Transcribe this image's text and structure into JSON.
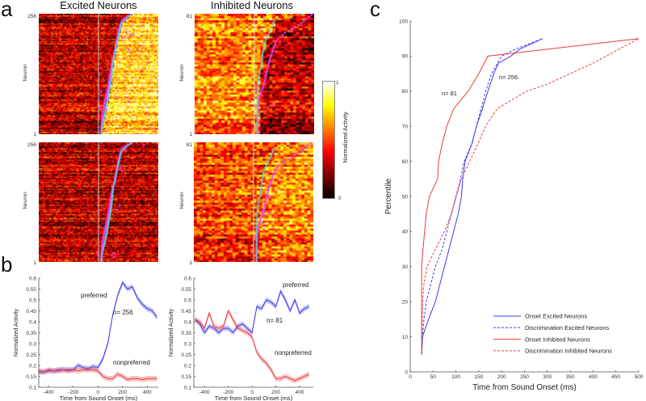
{
  "panel_labels": {
    "a": "a",
    "b": "b",
    "c": "c"
  },
  "heatmaps": {
    "titles": {
      "excited": "Excited Neurons",
      "inhibited": "Inhibited Neurons"
    },
    "ylabel": "Neuron",
    "excited_n": {
      "top": "256",
      "bottom": "1"
    },
    "inhibited_n": {
      "top": "81",
      "bottom": "1"
    },
    "colorbar": {
      "label": "Normalized Activity",
      "max": "1",
      "min": "0"
    },
    "colors": {
      "onset_marker": "#4fe3e3",
      "discrimination_marker": "#f03cf0",
      "onset_line": "#e8e8e8"
    }
  },
  "chart_data": [
    {
      "type": "line",
      "id": "b-excited",
      "xlabel": "Time from Sound Onset (ms)",
      "ylabel": "Normalized Activity",
      "xlim": [
        -480,
        490
      ],
      "ylim": [
        0.1,
        0.6
      ],
      "xticks": [
        -400,
        -200,
        0,
        200,
        400
      ],
      "yticks": [
        0.1,
        0.15,
        0.2,
        0.25,
        0.3,
        0.35,
        0.4,
        0.45,
        0.5,
        0.55,
        0.6
      ],
      "annotations": {
        "preferred": "preferred",
        "nonpreferred": "nonpreferred",
        "n": "n= 256"
      },
      "x": [
        -480,
        -440,
        -400,
        -360,
        -320,
        -280,
        -240,
        -200,
        -160,
        -120,
        -80,
        -40,
        0,
        40,
        80,
        120,
        160,
        200,
        240,
        280,
        320,
        360,
        400,
        440,
        480
      ],
      "series": [
        {
          "name": "preferred",
          "color": "#3b3bf0",
          "values": [
            0.17,
            0.17,
            0.175,
            0.175,
            0.18,
            0.18,
            0.18,
            0.18,
            0.2,
            0.19,
            0.185,
            0.195,
            0.19,
            0.23,
            0.3,
            0.43,
            0.52,
            0.58,
            0.55,
            0.56,
            0.51,
            0.48,
            0.46,
            0.45,
            0.42
          ]
        },
        {
          "name": "nonpreferred",
          "color": "#ee3a3a",
          "values": [
            0.175,
            0.17,
            0.18,
            0.175,
            0.175,
            0.18,
            0.175,
            0.18,
            0.175,
            0.18,
            0.18,
            0.18,
            0.175,
            0.15,
            0.14,
            0.14,
            0.16,
            0.15,
            0.135,
            0.14,
            0.14,
            0.135,
            0.14,
            0.14,
            0.14
          ]
        }
      ]
    },
    {
      "type": "line",
      "id": "b-inhibited",
      "xlabel": "Time from Sound Onset (ms)",
      "ylabel": "Normalized Activity",
      "xlim": [
        -490,
        515
      ],
      "ylim": [
        0.1,
        0.6
      ],
      "xticks": [
        -400,
        -200,
        0,
        200,
        400
      ],
      "yticks": [
        0.1,
        0.15,
        0.2,
        0.25,
        0.3,
        0.35,
        0.4,
        0.45,
        0.5,
        0.55,
        0.6
      ],
      "annotations": {
        "preferred": "preferred",
        "nonpreferred": "nonpreferred",
        "n": "n= 81"
      },
      "x": [
        -480,
        -440,
        -400,
        -360,
        -320,
        -280,
        -240,
        -200,
        -160,
        -120,
        -80,
        -40,
        0,
        40,
        80,
        120,
        160,
        200,
        240,
        280,
        320,
        360,
        400,
        440,
        480
      ],
      "series": [
        {
          "name": "preferred",
          "color": "#3b3bf0",
          "values": [
            0.41,
            0.39,
            0.35,
            0.38,
            0.37,
            0.35,
            0.37,
            0.37,
            0.35,
            0.38,
            0.39,
            0.37,
            0.35,
            0.47,
            0.46,
            0.5,
            0.49,
            0.47,
            0.54,
            0.5,
            0.45,
            0.5,
            0.44,
            0.46,
            0.47
          ]
        },
        {
          "name": "nonpreferred",
          "color": "#ee3a3a",
          "values": [
            0.41,
            0.4,
            0.37,
            0.44,
            0.38,
            0.37,
            0.38,
            0.45,
            0.41,
            0.37,
            0.36,
            0.35,
            0.33,
            0.26,
            0.23,
            0.21,
            0.18,
            0.14,
            0.14,
            0.15,
            0.14,
            0.13,
            0.14,
            0.15,
            0.16
          ]
        }
      ]
    },
    {
      "type": "line",
      "id": "c-cumulative",
      "xlabel": "Time from Sound Onset (ms)",
      "ylabel": "Percentile",
      "xlim": [
        0,
        500
      ],
      "ylim": [
        0,
        100
      ],
      "xticks": [
        0,
        50,
        100,
        150,
        200,
        250,
        300,
        350,
        400,
        450,
        500
      ],
      "yticks": [
        0,
        10,
        20,
        30,
        40,
        50,
        60,
        70,
        80,
        90,
        100
      ],
      "annotations": {
        "n_inhibited": "n= 81",
        "n_excited": "n= 256"
      },
      "legend_position": "bottom-right",
      "series": [
        {
          "name": "Onset Excited Neurons",
          "color": "#3b3bf0",
          "dashed": false,
          "points": [
            [
              25,
              5
            ],
            [
              27,
              10
            ],
            [
              40,
              15
            ],
            [
              55,
              20
            ],
            [
              65,
              25
            ],
            [
              75,
              30
            ],
            [
              85,
              35
            ],
            [
              95,
              40
            ],
            [
              105,
              45
            ],
            [
              112,
              50
            ],
            [
              115,
              55
            ],
            [
              120,
              60
            ],
            [
              135,
              65
            ],
            [
              145,
              70
            ],
            [
              158,
              75
            ],
            [
              170,
              80
            ],
            [
              183,
              85
            ],
            [
              193,
              88
            ],
            [
              220,
              90
            ],
            [
              240,
              92
            ],
            [
              290,
              95
            ]
          ]
        },
        {
          "name": "Discrimination Excited Neurons",
          "color": "#3b3bf0",
          "dashed": true,
          "points": [
            [
              25,
              5
            ],
            [
              27,
              10
            ],
            [
              30,
              15
            ],
            [
              35,
              20
            ],
            [
              45,
              25
            ],
            [
              55,
              30
            ],
            [
              70,
              35
            ],
            [
              80,
              40
            ],
            [
              90,
              45
            ],
            [
              100,
              50
            ],
            [
              110,
              55
            ],
            [
              118,
              60
            ],
            [
              135,
              65
            ],
            [
              145,
              70
            ],
            [
              155,
              75
            ],
            [
              165,
              80
            ],
            [
              178,
              85
            ],
            [
              200,
              90
            ],
            [
              230,
              92
            ],
            [
              290,
              95
            ]
          ]
        },
        {
          "name": "Onset Inhibited Neurons",
          "color": "#ee3a3a",
          "dashed": false,
          "points": [
            [
              25,
              5
            ],
            [
              25,
              30
            ],
            [
              28,
              35
            ],
            [
              35,
              45
            ],
            [
              42,
              50
            ],
            [
              60,
              55
            ],
            [
              62,
              60
            ],
            [
              70,
              65
            ],
            [
              80,
              70
            ],
            [
              95,
              75
            ],
            [
              127,
              80
            ],
            [
              150,
              85
            ],
            [
              170,
              90
            ],
            [
              500,
              95
            ]
          ]
        },
        {
          "name": "Discrimination Inhibited Neurons",
          "color": "#ee3a3a",
          "dashed": true,
          "points": [
            [
              25,
              5
            ],
            [
              27,
              20
            ],
            [
              30,
              25
            ],
            [
              37,
              30
            ],
            [
              55,
              35
            ],
            [
              75,
              40
            ],
            [
              90,
              45
            ],
            [
              112,
              55
            ],
            [
              130,
              60
            ],
            [
              148,
              65
            ],
            [
              165,
              70
            ],
            [
              190,
              75
            ],
            [
              255,
              80
            ],
            [
              300,
              82
            ],
            [
              400,
              88
            ],
            [
              500,
              95
            ]
          ]
        }
      ]
    }
  ]
}
